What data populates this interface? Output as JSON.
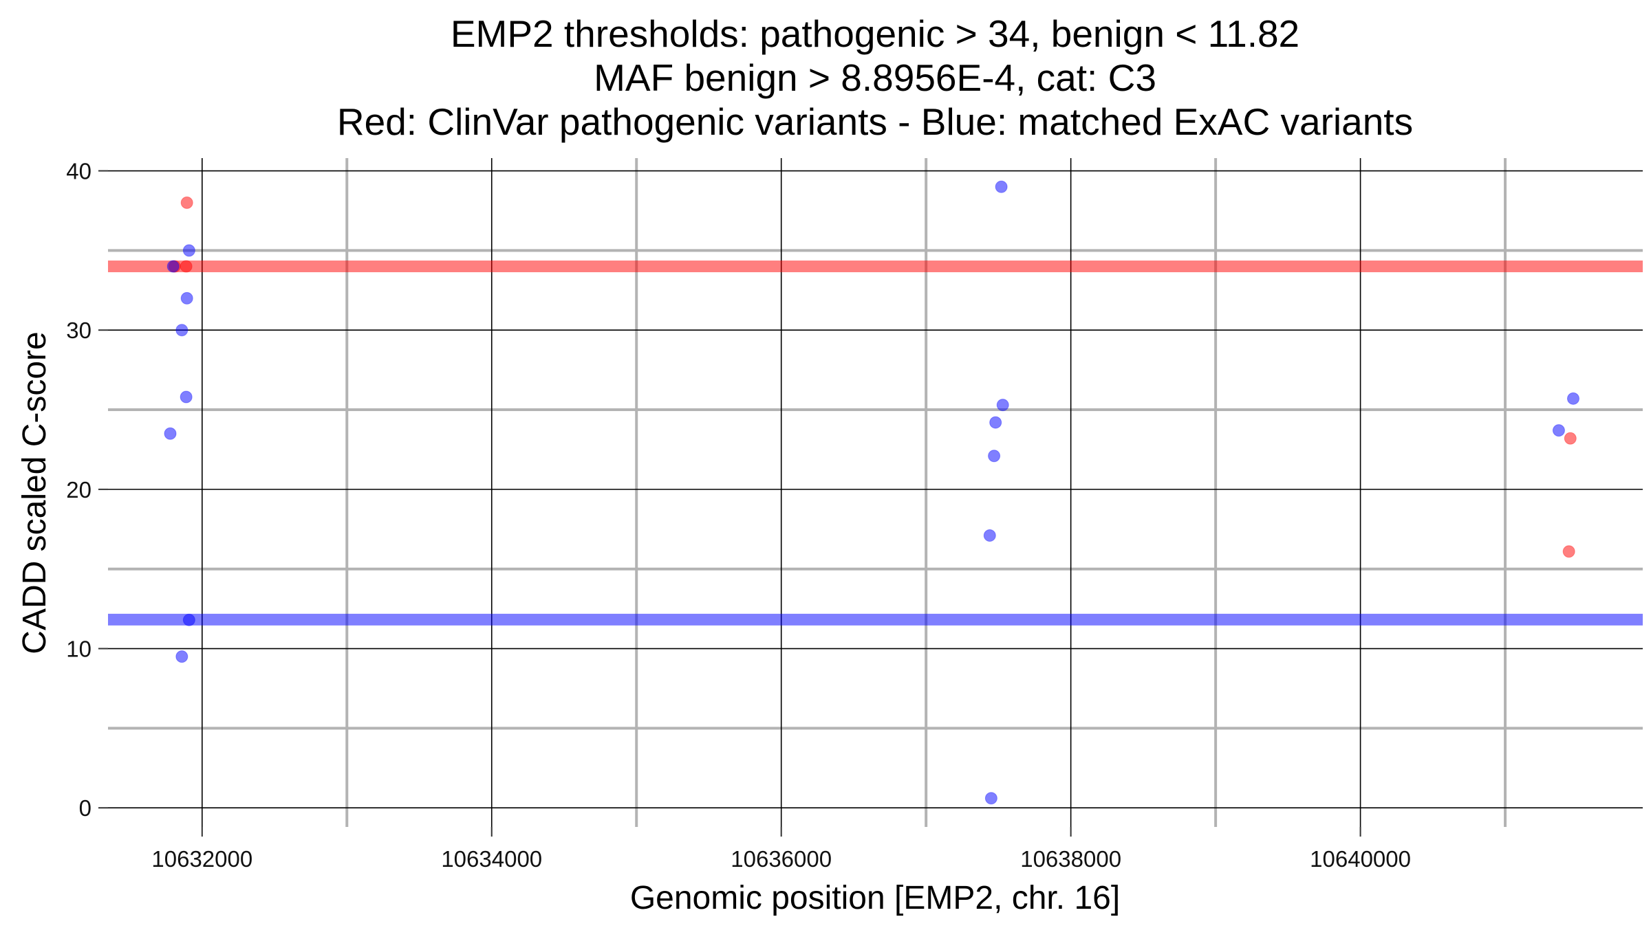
{
  "chart_data": {
    "type": "scatter",
    "title_lines": [
      "EMP2 thresholds: pathogenic > 34, benign < 11.82",
      "MAF benign > 8.8956E-4, cat: C3",
      "Red: ClinVar pathogenic variants - Blue: matched ExAC variants"
    ],
    "xlabel": "Genomic position [EMP2, chr. 16]",
    "ylabel": "CADD scaled C-score",
    "xlim": [
      10631350,
      10641950
    ],
    "ylim": [
      -1.2,
      40.8
    ],
    "x_ticks": [
      10632000,
      10634000,
      10636000,
      10638000,
      10640000
    ],
    "x_tick_labels": [
      "10632000",
      "10634000",
      "10636000",
      "10638000",
      "10640000"
    ],
    "x_minor_gridlines": [
      10633000,
      10635000,
      10637000,
      10639000,
      10641000
    ],
    "y_ticks": [
      0,
      10,
      20,
      30,
      40
    ],
    "y_tick_labels": [
      "0",
      "10",
      "20",
      "30",
      "40"
    ],
    "y_minor_gridlines": [
      5,
      15,
      25,
      35
    ],
    "grid": true,
    "thresholds": [
      {
        "name": "pathogenic",
        "value": 34,
        "color": "#ff0000"
      },
      {
        "name": "benign",
        "value": 11.82,
        "color": "#0000ff"
      }
    ],
    "series": [
      {
        "color": "#ff0000",
        "points": [
          {
            "x": 10631810,
            "y": 34
          },
          {
            "x": 10631895,
            "y": 38
          },
          {
            "x": 10631890,
            "y": 34
          },
          {
            "x": 10641450,
            "y": 23.2
          },
          {
            "x": 10641440,
            "y": 16.1
          }
        ]
      },
      {
        "color": "#0000ff",
        "points": [
          {
            "x": 10631800,
            "y": 34
          },
          {
            "x": 10631910,
            "y": 35
          },
          {
            "x": 10631895,
            "y": 32
          },
          {
            "x": 10631860,
            "y": 30
          },
          {
            "x": 10631890,
            "y": 25.8
          },
          {
            "x": 10631780,
            "y": 23.5
          },
          {
            "x": 10631910,
            "y": 11.8
          },
          {
            "x": 10631860,
            "y": 9.5
          },
          {
            "x": 10637520,
            "y": 39
          },
          {
            "x": 10637530,
            "y": 25.3
          },
          {
            "x": 10637480,
            "y": 24.2
          },
          {
            "x": 10637470,
            "y": 22.1
          },
          {
            "x": 10637440,
            "y": 17.1
          },
          {
            "x": 10637450,
            "y": 0.6
          },
          {
            "x": 10641470,
            "y": 25.7
          },
          {
            "x": 10641370,
            "y": 23.7
          }
        ]
      }
    ]
  }
}
